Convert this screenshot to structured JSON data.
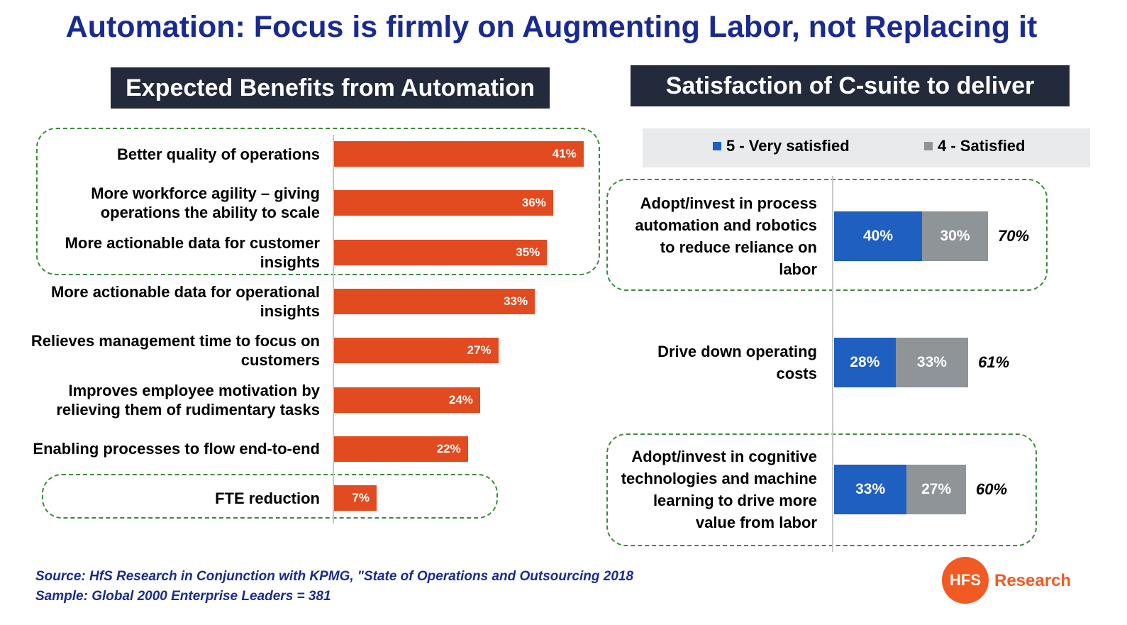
{
  "title": "Automation: Focus is firmly on Augmenting Labor, not Replacing it",
  "left_header": "Expected Benefits from Automation",
  "right_header": "Satisfaction of C-suite to deliver",
  "legend": {
    "very_satisfied": "5 - Very satisfied",
    "satisfied": "4 - Satisfied"
  },
  "colors": {
    "bar": "#e24a1f",
    "very_satisfied": "#1f5fbf",
    "satisfied": "#8f9499",
    "title": "#1a2b8f",
    "highlight_border": "#3d8a3d"
  },
  "source": {
    "line1": "Source: HfS Research in Conjunction with KPMG, \"State of Operations and Outsourcing 2018",
    "line2": "Sample: Global 2000 Enterprise Leaders = 381"
  },
  "logo": {
    "mark": "HFS",
    "text": "Research"
  },
  "chart_data": [
    {
      "type": "bar",
      "orientation": "horizontal",
      "title": "Expected Benefits from Automation",
      "categories": [
        "Better quality of operations",
        "More workforce agility – giving operations the ability to scale",
        "More actionable data for customer insights",
        "More actionable data for operational insights",
        "Relieves management time to focus on customers",
        "Improves employee motivation by relieving them of rudimentary tasks",
        "Enabling processes to flow end-to-end",
        "FTE reduction"
      ],
      "category_lines": [
        [
          "Better quality of operations"
        ],
        [
          "More workforce agility – giving",
          "operations the ability to scale"
        ],
        [
          "More actionable data for customer",
          "insights"
        ],
        [
          "More actionable data for operational",
          "insights"
        ],
        [
          "Relieves management time to focus on",
          "customers"
        ],
        [
          "Improves employee motivation by",
          "relieving them of rudimentary tasks"
        ],
        [
          "Enabling processes to flow end-to-end"
        ],
        [
          "FTE reduction"
        ]
      ],
      "values": [
        41,
        36,
        35,
        33,
        27,
        24,
        22,
        7
      ],
      "value_labels": [
        "41%",
        "36%",
        "35%",
        "33%",
        "27%",
        "24%",
        "22%",
        "7%"
      ],
      "highlighted_groups": [
        [
          0,
          2
        ],
        [
          7,
          7
        ]
      ]
    },
    {
      "type": "bar",
      "orientation": "horizontal",
      "stacked": true,
      "title": "Satisfaction of C-suite to deliver",
      "categories": [
        "Adopt/invest in process automation and robotics to reduce reliance on labor",
        "Drive down operating costs",
        "Adopt/invest in cognitive technologies and machine learning to drive more value from labor"
      ],
      "category_lines": [
        [
          "Adopt/invest in process",
          "automation and robotics",
          "to reduce reliance on",
          "labor"
        ],
        [
          "Drive down operating",
          "costs"
        ],
        [
          "Adopt/invest in cognitive",
          "technologies and machine",
          "learning to drive more",
          "value from labor"
        ]
      ],
      "series": [
        {
          "name": "5 - Very satisfied",
          "values": [
            40,
            28,
            33
          ],
          "labels": [
            "40%",
            "28%",
            "33%"
          ]
        },
        {
          "name": "4 - Satisfied",
          "values": [
            30,
            33,
            27
          ],
          "labels": [
            "30%",
            "33%",
            "27%"
          ]
        }
      ],
      "totals": [
        70,
        61,
        60
      ],
      "total_labels": [
        "70%",
        "61%",
        "60%"
      ],
      "legend_position": "top",
      "highlighted_groups": [
        [
          0,
          0
        ],
        [
          2,
          2
        ]
      ]
    }
  ]
}
